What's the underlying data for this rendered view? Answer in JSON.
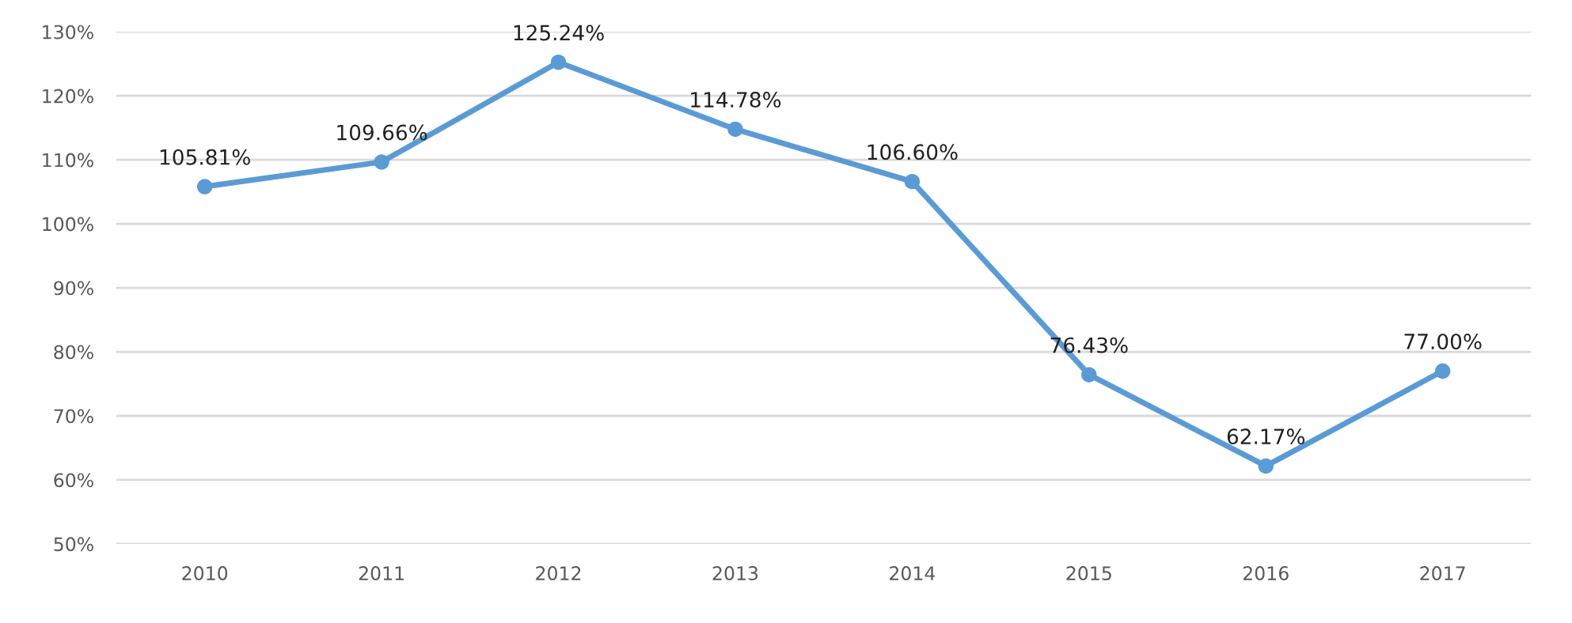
{
  "chart_data": {
    "type": "line",
    "categories": [
      "2010",
      "2011",
      "2012",
      "2013",
      "2014",
      "2015",
      "2016",
      "2017"
    ],
    "series": [
      {
        "color": "#5b9bd5",
        "values": [
          105.81,
          109.66,
          125.24,
          114.78,
          106.6,
          76.43,
          62.17,
          77.0
        ],
        "value_labels": [
          "105.81%",
          "109.66%",
          "125.24%",
          "114.78%",
          "106.60%",
          "76.43%",
          "62.17%",
          "77.00%"
        ]
      }
    ],
    "ylim": [
      50,
      130
    ],
    "yticks": [
      {
        "value": 50,
        "label": "50%"
      },
      {
        "value": 60,
        "label": "60%"
      },
      {
        "value": 70,
        "label": "70%"
      },
      {
        "value": 80,
        "label": "80%"
      },
      {
        "value": 90,
        "label": "90%"
      },
      {
        "value": 100,
        "label": "100%"
      },
      {
        "value": 110,
        "label": "110%"
      },
      {
        "value": 120,
        "label": "120%"
      },
      {
        "value": 130,
        "label": "130%"
      }
    ],
    "grid": "y",
    "marker": "circle",
    "line_style": "solid",
    "legend": false
  }
}
